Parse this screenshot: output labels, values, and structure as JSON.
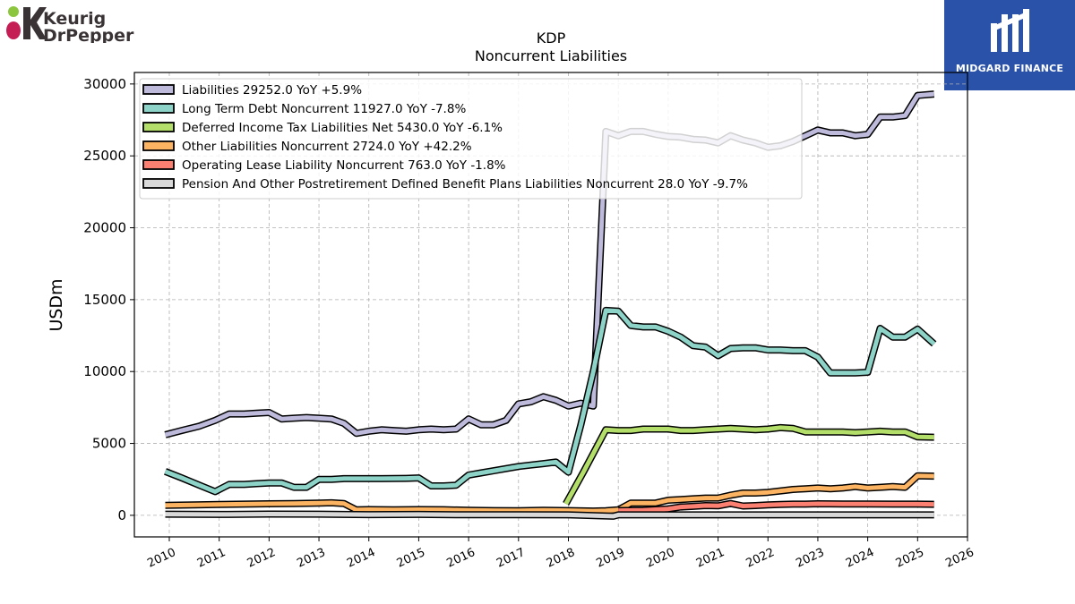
{
  "logo": {
    "line1": "Keurig",
    "line2": "DrPepper"
  },
  "badge": {
    "text": "MIDGARD FINANCE",
    "color": "#2a52a8"
  },
  "chart_data": {
    "type": "line",
    "title": "KDP",
    "subtitle": "Noncurrent  Liabilities",
    "ylabel": "USDm",
    "xlabel": "",
    "xlim": [
      2009.3,
      2026.0
    ],
    "ylim": [
      -1500,
      30800
    ],
    "yticks": [
      0,
      5000,
      10000,
      15000,
      20000,
      25000,
      30000
    ],
    "xticks": [
      2010,
      2011,
      2012,
      2013,
      2014,
      2015,
      2016,
      2017,
      2018,
      2019,
      2020,
      2021,
      2022,
      2023,
      2024,
      2025,
      2026
    ],
    "grid": true,
    "legend_position": "top-left",
    "series": [
      {
        "name": "Liabilities",
        "legend": "Liabilities  29252.0 YoY +5.9%",
        "color": "#bebadb",
        "points": [
          [
            2009.92,
            5600
          ],
          [
            2010.25,
            5900
          ],
          [
            2010.6,
            6200
          ],
          [
            2010.92,
            6600
          ],
          [
            2011.2,
            7050
          ],
          [
            2011.5,
            7050
          ],
          [
            2011.75,
            7100
          ],
          [
            2012.0,
            7150
          ],
          [
            2012.25,
            6700
          ],
          [
            2012.5,
            6750
          ],
          [
            2012.75,
            6800
          ],
          [
            2013.0,
            6750
          ],
          [
            2013.25,
            6700
          ],
          [
            2013.5,
            6400
          ],
          [
            2013.75,
            5700
          ],
          [
            2014.0,
            5850
          ],
          [
            2014.25,
            5950
          ],
          [
            2014.5,
            5900
          ],
          [
            2014.75,
            5850
          ],
          [
            2015.0,
            5950
          ],
          [
            2015.25,
            6000
          ],
          [
            2015.5,
            5950
          ],
          [
            2015.75,
            6000
          ],
          [
            2016.0,
            6700
          ],
          [
            2016.25,
            6300
          ],
          [
            2016.5,
            6300
          ],
          [
            2016.75,
            6600
          ],
          [
            2017.0,
            7750
          ],
          [
            2017.25,
            7900
          ],
          [
            2017.5,
            8250
          ],
          [
            2017.75,
            8000
          ],
          [
            2018.0,
            7600
          ],
          [
            2018.25,
            7800
          ],
          [
            2018.5,
            7600
          ],
          [
            2018.75,
            26700
          ],
          [
            2019.0,
            26400
          ],
          [
            2019.25,
            26700
          ],
          [
            2019.5,
            26700
          ],
          [
            2019.75,
            26500
          ],
          [
            2020.0,
            26350
          ],
          [
            2020.25,
            26300
          ],
          [
            2020.5,
            26150
          ],
          [
            2020.75,
            26100
          ],
          [
            2021.0,
            25900
          ],
          [
            2021.25,
            26400
          ],
          [
            2021.5,
            26100
          ],
          [
            2021.75,
            25900
          ],
          [
            2022.0,
            25600
          ],
          [
            2022.25,
            25700
          ],
          [
            2022.5,
            26000
          ],
          [
            2022.75,
            26400
          ],
          [
            2023.0,
            26800
          ],
          [
            2023.25,
            26600
          ],
          [
            2023.5,
            26600
          ],
          [
            2023.75,
            26400
          ],
          [
            2024.0,
            26500
          ],
          [
            2024.25,
            27700
          ],
          [
            2024.5,
            27700
          ],
          [
            2024.75,
            27800
          ],
          [
            2025.0,
            29200
          ],
          [
            2025.33,
            29300
          ]
        ]
      },
      {
        "name": "Long Term Debt Noncurrent",
        "legend": "Long Term Debt Noncurrent  11927.0 YoY -7.8%",
        "color": "#8dd3c7",
        "points": [
          [
            2009.92,
            3050
          ],
          [
            2010.25,
            2600
          ],
          [
            2010.6,
            2100
          ],
          [
            2010.92,
            1650
          ],
          [
            2011.2,
            2150
          ],
          [
            2011.5,
            2150
          ],
          [
            2011.75,
            2200
          ],
          [
            2012.0,
            2250
          ],
          [
            2012.25,
            2250
          ],
          [
            2012.5,
            1950
          ],
          [
            2012.75,
            1950
          ],
          [
            2013.0,
            2500
          ],
          [
            2013.25,
            2500
          ],
          [
            2013.5,
            2550
          ],
          [
            2013.75,
            2550
          ],
          [
            2014.0,
            2550
          ],
          [
            2014.25,
            2550
          ],
          [
            2014.5,
            2560
          ],
          [
            2014.75,
            2570
          ],
          [
            2015.0,
            2600
          ],
          [
            2015.25,
            2050
          ],
          [
            2015.5,
            2050
          ],
          [
            2015.75,
            2100
          ],
          [
            2016.0,
            2800
          ],
          [
            2016.25,
            2950
          ],
          [
            2016.5,
            3100
          ],
          [
            2016.75,
            3250
          ],
          [
            2017.0,
            3400
          ],
          [
            2017.25,
            3500
          ],
          [
            2017.5,
            3600
          ],
          [
            2017.75,
            3700
          ],
          [
            2018.0,
            3000
          ],
          [
            2018.25,
            6300
          ],
          [
            2018.5,
            10000
          ],
          [
            2018.75,
            14250
          ],
          [
            2019.0,
            14200
          ],
          [
            2019.25,
            13200
          ],
          [
            2019.5,
            13100
          ],
          [
            2019.75,
            13100
          ],
          [
            2020.0,
            12800
          ],
          [
            2020.25,
            12400
          ],
          [
            2020.5,
            11800
          ],
          [
            2020.75,
            11700
          ],
          [
            2021.0,
            11100
          ],
          [
            2021.25,
            11600
          ],
          [
            2021.5,
            11650
          ],
          [
            2021.75,
            11650
          ],
          [
            2022.0,
            11500
          ],
          [
            2022.25,
            11500
          ],
          [
            2022.5,
            11450
          ],
          [
            2022.75,
            11450
          ],
          [
            2023.0,
            11000
          ],
          [
            2023.25,
            9900
          ],
          [
            2023.5,
            9900
          ],
          [
            2023.75,
            9900
          ],
          [
            2024.0,
            9950
          ],
          [
            2024.25,
            13000
          ],
          [
            2024.5,
            12400
          ],
          [
            2024.75,
            12400
          ],
          [
            2025.0,
            12950
          ],
          [
            2025.33,
            11927
          ]
        ]
      },
      {
        "name": "Deferred Income Tax Liabilities Net",
        "legend": "Deferred Income Tax Liabilities Net  5430.0 YoY -6.1%",
        "color": "#b3de69",
        "points": [
          [
            2017.95,
            800
          ],
          [
            2018.3,
            3000
          ],
          [
            2018.75,
            5950
          ],
          [
            2019.0,
            5900
          ],
          [
            2019.25,
            5900
          ],
          [
            2019.5,
            6000
          ],
          [
            2019.75,
            6000
          ],
          [
            2020.0,
            6000
          ],
          [
            2020.25,
            5900
          ],
          [
            2020.5,
            5900
          ],
          [
            2020.75,
            5950
          ],
          [
            2021.0,
            6000
          ],
          [
            2021.25,
            6050
          ],
          [
            2021.5,
            6000
          ],
          [
            2021.75,
            5950
          ],
          [
            2022.0,
            6000
          ],
          [
            2022.25,
            6100
          ],
          [
            2022.5,
            6050
          ],
          [
            2022.75,
            5800
          ],
          [
            2023.0,
            5800
          ],
          [
            2023.25,
            5800
          ],
          [
            2023.5,
            5800
          ],
          [
            2023.75,
            5750
          ],
          [
            2024.0,
            5800
          ],
          [
            2024.25,
            5850
          ],
          [
            2024.5,
            5800
          ],
          [
            2024.75,
            5800
          ],
          [
            2025.0,
            5450
          ],
          [
            2025.33,
            5430
          ]
        ]
      },
      {
        "name": "Other Liabilities Noncurrent",
        "legend": "Other Liabilities Noncurrent  2724.0 YoY +42.2%",
        "color": "#fdb462",
        "points": [
          [
            2009.92,
            700
          ],
          [
            2010.5,
            720
          ],
          [
            2011.0,
            750
          ],
          [
            2011.5,
            780
          ],
          [
            2012.0,
            800
          ],
          [
            2012.5,
            820
          ],
          [
            2013.0,
            850
          ],
          [
            2013.25,
            870
          ],
          [
            2013.5,
            820
          ],
          [
            2013.75,
            380
          ],
          [
            2014.0,
            400
          ],
          [
            2014.5,
            380
          ],
          [
            2015.0,
            400
          ],
          [
            2015.5,
            390
          ],
          [
            2016.0,
            350
          ],
          [
            2016.5,
            330
          ],
          [
            2017.0,
            320
          ],
          [
            2017.5,
            350
          ],
          [
            2018.0,
            330
          ],
          [
            2018.5,
            300
          ],
          [
            2018.75,
            320
          ],
          [
            2019.0,
            380
          ],
          [
            2019.25,
            850
          ],
          [
            2019.5,
            850
          ],
          [
            2019.75,
            850
          ],
          [
            2020.0,
            1050
          ],
          [
            2020.25,
            1100
          ],
          [
            2020.5,
            1150
          ],
          [
            2020.75,
            1200
          ],
          [
            2021.0,
            1200
          ],
          [
            2021.25,
            1400
          ],
          [
            2021.5,
            1550
          ],
          [
            2021.75,
            1550
          ],
          [
            2022.0,
            1600
          ],
          [
            2022.25,
            1700
          ],
          [
            2022.5,
            1800
          ],
          [
            2022.75,
            1850
          ],
          [
            2023.0,
            1900
          ],
          [
            2023.25,
            1850
          ],
          [
            2023.5,
            1900
          ],
          [
            2023.75,
            2000
          ],
          [
            2024.0,
            1900
          ],
          [
            2024.25,
            1950
          ],
          [
            2024.5,
            2000
          ],
          [
            2024.75,
            1950
          ],
          [
            2025.0,
            2750
          ],
          [
            2025.33,
            2724
          ]
        ]
      },
      {
        "name": "Operating Lease Liability Noncurrent",
        "legend": "Operating Lease Liability Noncurrent  763.0 YoY -1.8%",
        "color": "#fb8072",
        "points": [
          [
            2019.0,
            330
          ],
          [
            2019.5,
            350
          ],
          [
            2020.0,
            450
          ],
          [
            2020.25,
            580
          ],
          [
            2020.5,
            620
          ],
          [
            2020.75,
            680
          ],
          [
            2021.0,
            660
          ],
          [
            2021.25,
            820
          ],
          [
            2021.5,
            650
          ],
          [
            2021.75,
            680
          ],
          [
            2022.0,
            720
          ],
          [
            2022.25,
            760
          ],
          [
            2022.5,
            780
          ],
          [
            2022.75,
            780
          ],
          [
            2023.0,
            800
          ],
          [
            2023.5,
            790
          ],
          [
            2024.0,
            790
          ],
          [
            2024.5,
            780
          ],
          [
            2025.0,
            780
          ],
          [
            2025.33,
            763
          ]
        ]
      },
      {
        "name": "Pension And Other Postretirement Defined Benefit Plans Liabilities Noncurrent",
        "legend": "Pension And Other Postretirement Defined Benefit Plans Liabilities Noncurrent  28.0 YoY -9.7%",
        "color": "#d9d9d9",
        "points": [
          [
            2009.92,
            80
          ],
          [
            2011.0,
            60
          ],
          [
            2012.0,
            90
          ],
          [
            2013.0,
            80
          ],
          [
            2014.0,
            50
          ],
          [
            2015.0,
            60
          ],
          [
            2016.0,
            40
          ],
          [
            2017.0,
            40
          ],
          [
            2018.0,
            30
          ],
          [
            2018.9,
            -60
          ],
          [
            2019.0,
            30
          ],
          [
            2020.0,
            30
          ],
          [
            2021.0,
            30
          ],
          [
            2022.0,
            30
          ],
          [
            2023.0,
            30
          ],
          [
            2024.0,
            30
          ],
          [
            2025.0,
            30
          ],
          [
            2025.33,
            28
          ]
        ]
      }
    ]
  }
}
